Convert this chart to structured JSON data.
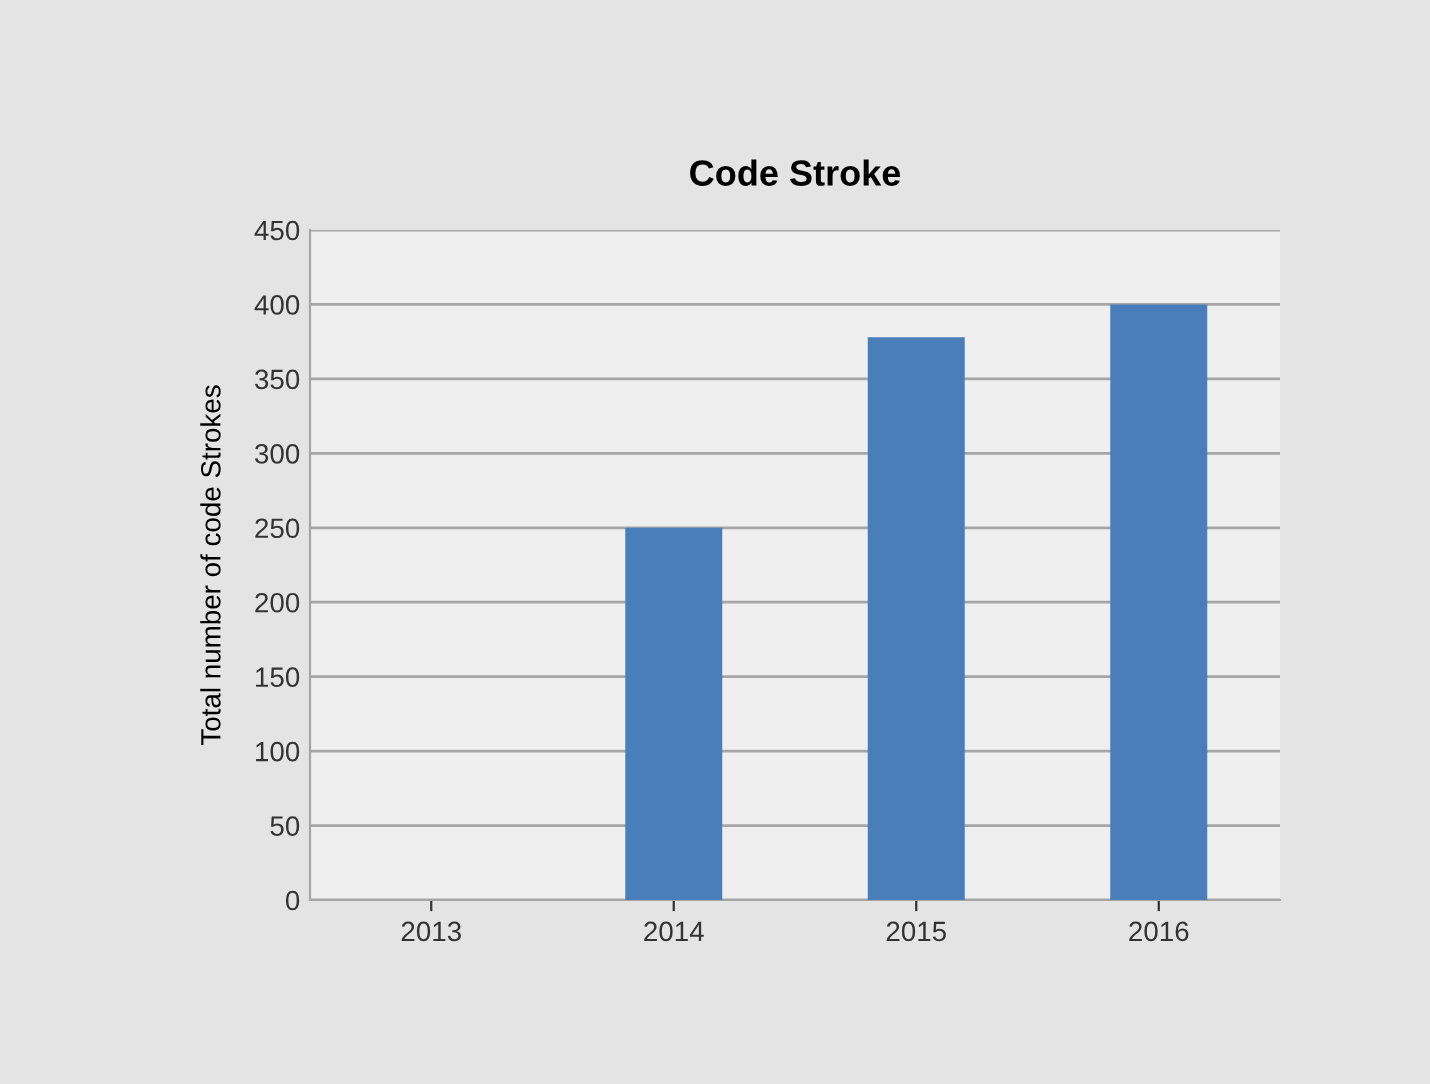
{
  "chart_data": {
    "type": "bar",
    "title": "Code Stroke",
    "ylabel": "Total number of code Strokes",
    "categories": [
      "2013",
      "2014",
      "2015",
      "2016"
    ],
    "values": [
      0,
      250,
      378,
      400
    ],
    "color": "#4a7ebb",
    "ylim": [
      0,
      450
    ],
    "yticks": [
      0,
      50,
      100,
      150,
      200,
      250,
      300,
      350,
      400,
      450
    ],
    "grid": "y",
    "legend": false
  }
}
